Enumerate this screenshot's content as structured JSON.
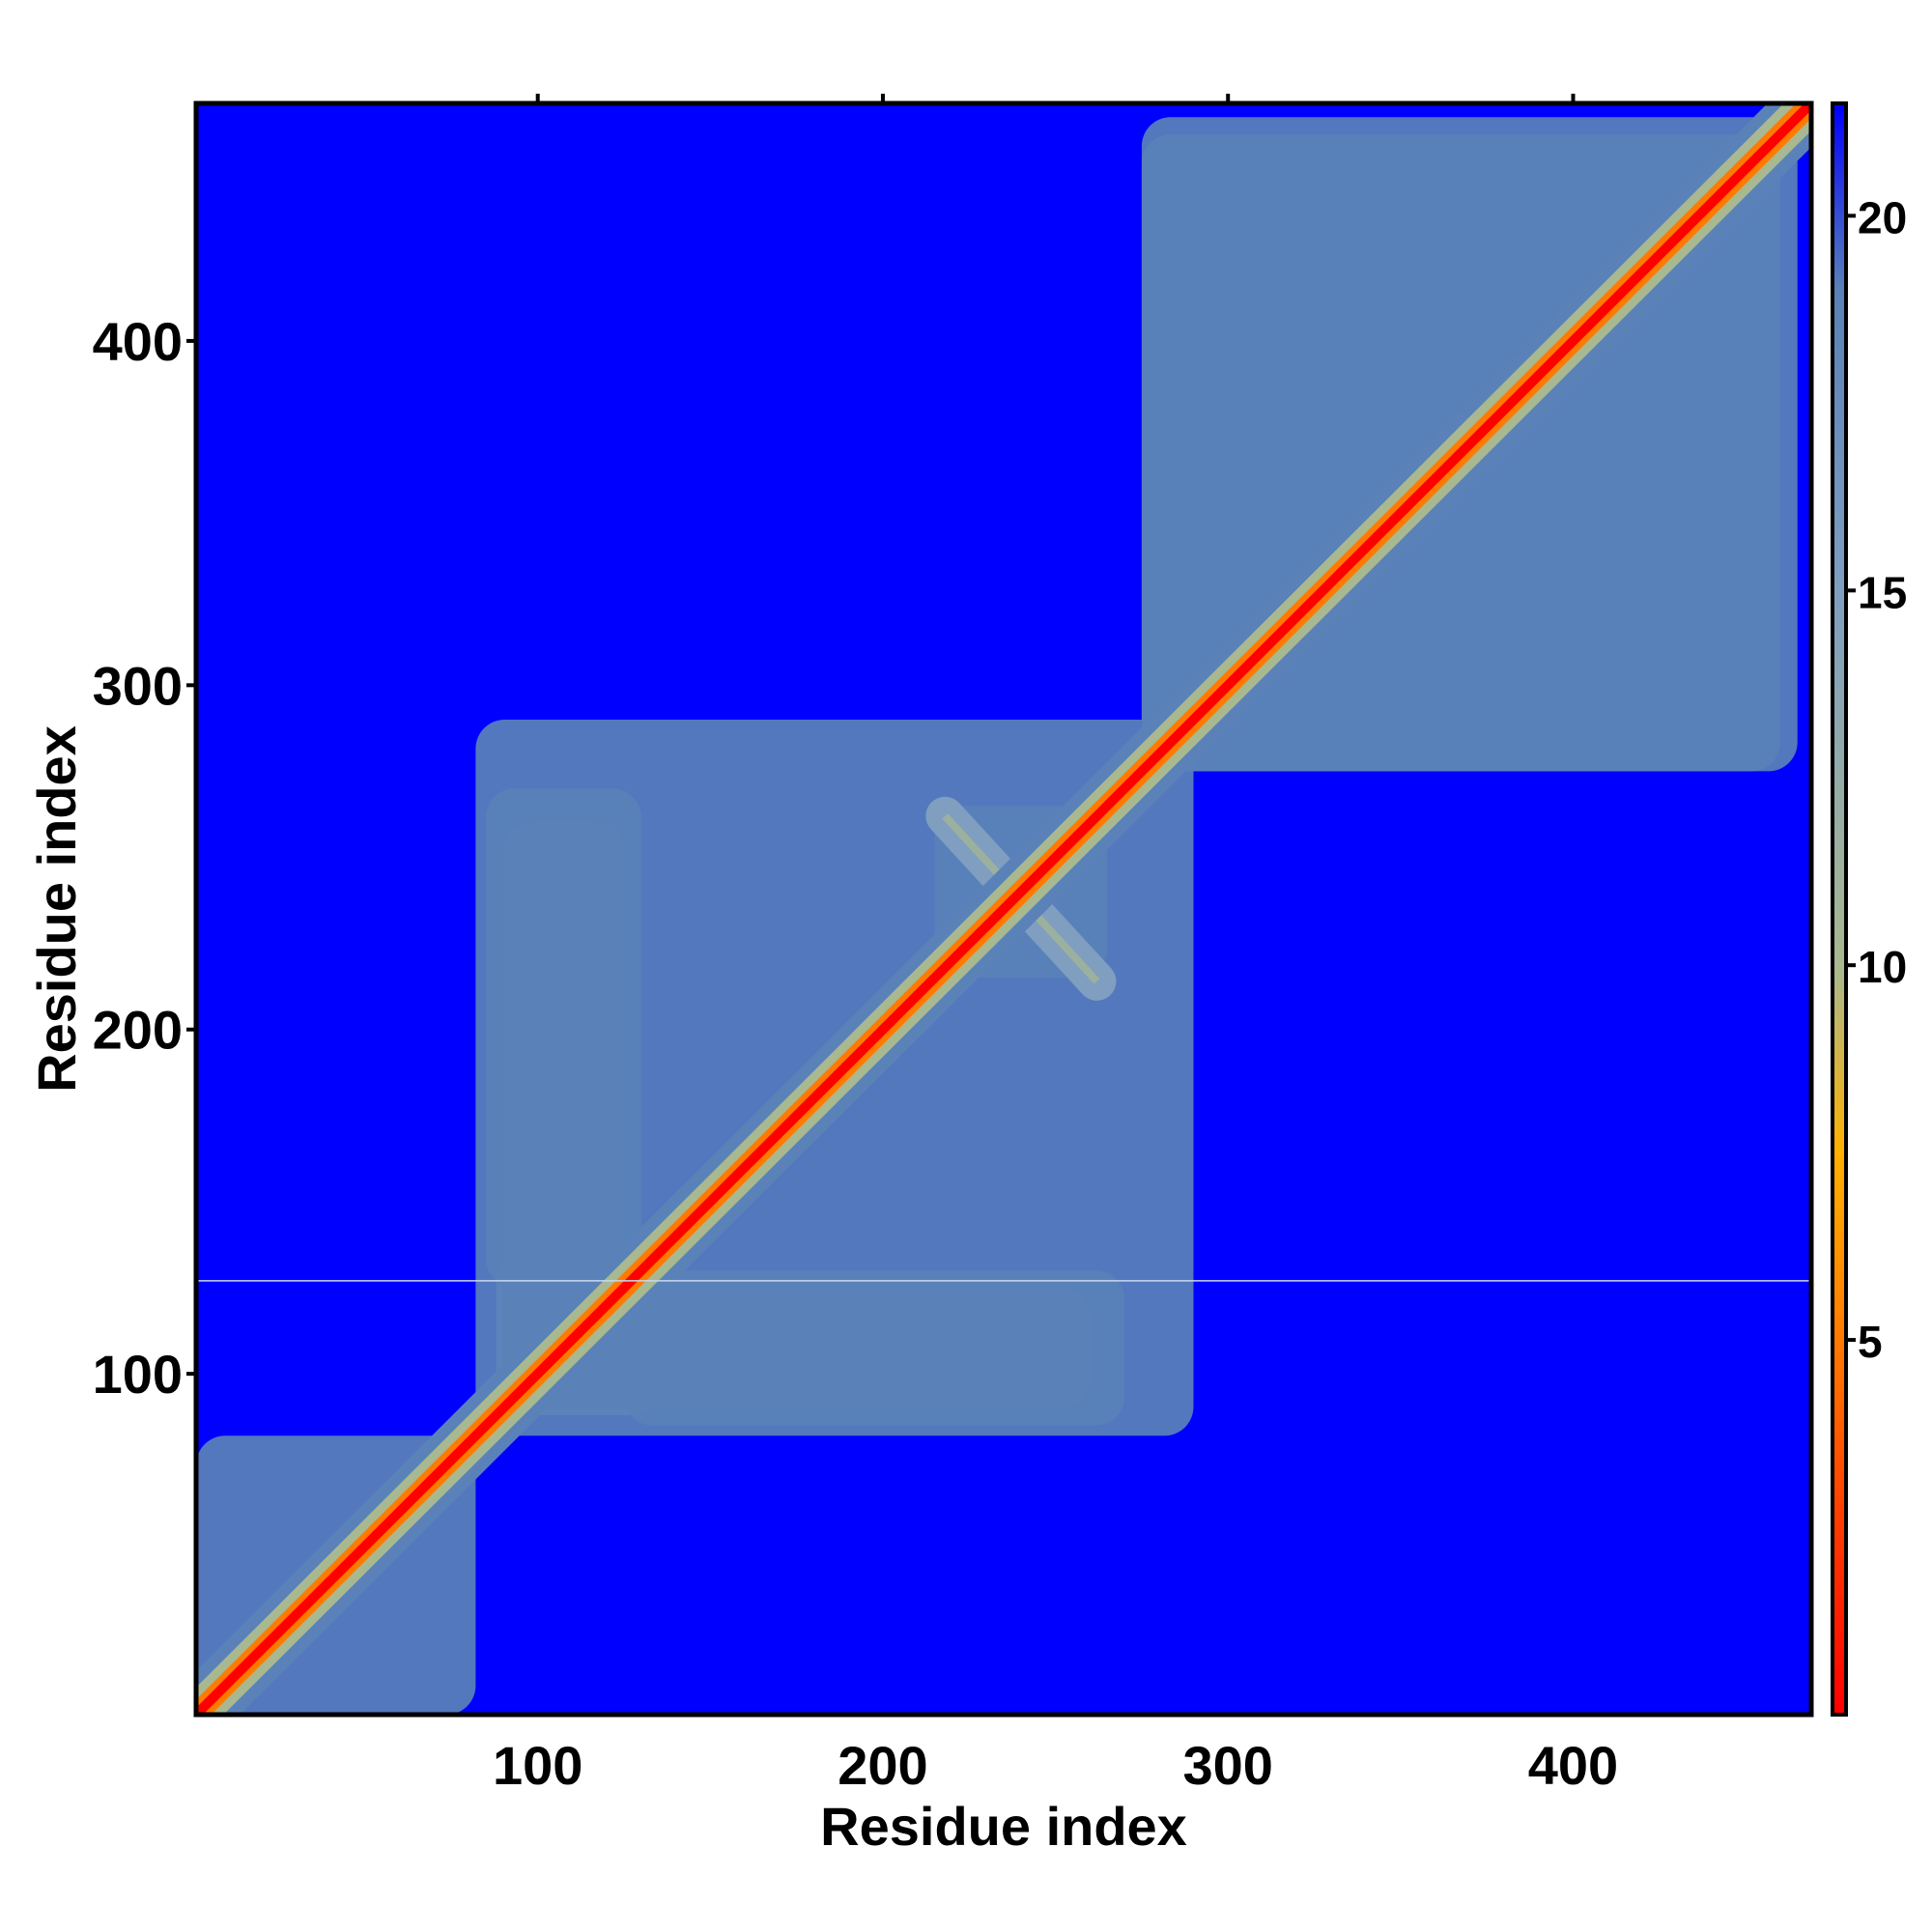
{
  "chart_data": {
    "type": "heatmap",
    "title": "",
    "xlabel": "Residue index",
    "ylabel": "Residue index",
    "xlim": [
      1,
      469
    ],
    "ylim": [
      1,
      469
    ],
    "x_ticks": [
      100,
      200,
      300,
      400
    ],
    "y_ticks": [
      100,
      200,
      300,
      400
    ],
    "colorbar": {
      "range": [
        0,
        21.5
      ],
      "ticks": [
        5,
        10,
        15,
        20
      ],
      "tick_labels": [
        "5",
        "10",
        "15",
        "20"
      ],
      "colors": [
        {
          "value": 0,
          "color": "#ff0000"
        },
        {
          "value": 2.5,
          "color": "#ff3a00"
        },
        {
          "value": 5,
          "color": "#ff7a00"
        },
        {
          "value": 7.5,
          "color": "#ffb000"
        },
        {
          "value": 10,
          "color": "#a8b890"
        },
        {
          "value": 15,
          "color": "#7f9ec0"
        },
        {
          "value": 19,
          "color": "#5a82b8"
        },
        {
          "value": 21.5,
          "color": "#0000ff"
        }
      ]
    },
    "background_value": 21.5,
    "diagonal_value": 0,
    "regions": [
      {
        "label": "domain-1",
        "x": [
          1,
          82
        ],
        "y": [
          1,
          82
        ],
        "value": 16
      },
      {
        "label": "domain-2",
        "x": [
          88,
          135
        ],
        "y": [
          88,
          135
        ],
        "value": 15
      },
      {
        "label": "diagonal-band",
        "x": [
          82,
          290
        ],
        "y": [
          82,
          290
        ],
        "value": 17
      },
      {
        "label": "cross-255",
        "x": [
          215,
          265
        ],
        "y": [
          215,
          265
        ],
        "value": 17
      },
      {
        "label": "domain-3",
        "x": [
          275,
          460
        ],
        "y": [
          275,
          465
        ],
        "value": 18
      },
      {
        "label": "offdiag-strip-100-240",
        "x": [
          90,
          260
        ],
        "y": [
          90,
          125
        ],
        "value": 19
      },
      {
        "label": "offdiag-strip-upper",
        "x": [
          85,
          130
        ],
        "y": [
          125,
          270
        ],
        "value": 19
      }
    ]
  }
}
